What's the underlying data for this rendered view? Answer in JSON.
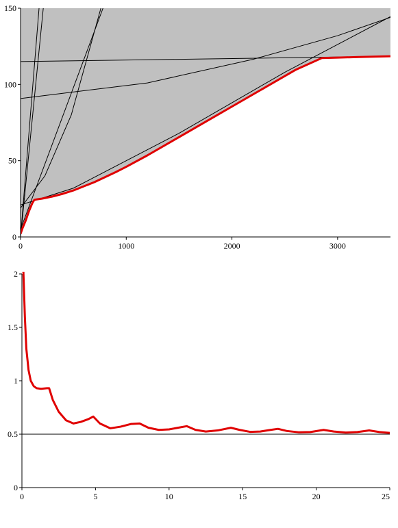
{
  "chart_data": [
    {
      "type": "area",
      "xlim": [
        0,
        3500
      ],
      "ylim": [
        0,
        150
      ],
      "xticks": [
        0,
        1000,
        2000,
        3000
      ],
      "yticks": [
        0,
        50,
        100,
        150
      ],
      "xtick_labels": [
        "0",
        "1000",
        "2000",
        "3000"
      ],
      "ytick_labels": [
        "0",
        "50",
        "100",
        "150"
      ],
      "grid": false,
      "fill_color": "#c0c0c0",
      "lower_envelope_color": "#e00000",
      "line_color": "#000000",
      "lower_envelope": {
        "x": [
          0,
          20,
          50,
          80,
          110,
          130,
          150,
          200,
          300,
          400,
          500,
          700,
          900,
          1000,
          1200,
          1500,
          1800,
          2000,
          2300,
          2600,
          2850,
          3000,
          3200,
          3500
        ],
        "y": [
          2,
          6,
          11,
          17,
          22,
          24.3,
          24.6,
          25.1,
          26.5,
          28.3,
          30.5,
          36,
          42.5,
          46,
          53.5,
          65.5,
          77.5,
          85.5,
          97.5,
          109.5,
          117.3,
          117.6,
          118,
          118.5
        ]
      },
      "curves": [
        {
          "x": [
            0,
            3500
          ],
          "y": [
            115,
            118.5
          ]
        },
        {
          "x": [
            0,
            1200,
            2200,
            3000,
            3500
          ],
          "y": [
            90.8,
            101,
            116.5,
            132,
            144
          ]
        },
        {
          "x": [
            0,
            500,
            1500,
            2500,
            3500
          ],
          "y": [
            21,
            32,
            68,
            108,
            144.5
          ]
        },
        {
          "x": [
            0,
            780
          ],
          "y": [
            5,
            150
          ]
        },
        {
          "x": [
            0,
            230,
            480,
            760
          ],
          "y": [
            19,
            40,
            80,
            150
          ]
        },
        {
          "x": [
            0,
            175
          ],
          "y": [
            0,
            150
          ]
        },
        {
          "x": [
            0,
            215
          ],
          "y": [
            0,
            150
          ]
        }
      ]
    },
    {
      "type": "line",
      "xlim": [
        0,
        25
      ],
      "ylim": [
        0,
        2
      ],
      "xticks": [
        0,
        5,
        10,
        15,
        20,
        25
      ],
      "yticks": [
        0,
        0.5,
        1,
        1.5,
        2
      ],
      "xtick_labels": [
        "0",
        "5",
        "10",
        "15",
        "20",
        "25"
      ],
      "ytick_labels": [
        "0",
        "0.5",
        "1",
        "1.5",
        "2"
      ],
      "grid": false,
      "reference_line_y": 0.5,
      "series": [
        {
          "color": "#e00000",
          "x": [
            0.1,
            0.2,
            0.3,
            0.45,
            0.6,
            0.8,
            1.0,
            1.3,
            1.7,
            1.85,
            2.1,
            2.5,
            3.0,
            3.5,
            4.0,
            4.5,
            4.85,
            5.3,
            6.0,
            6.7,
            7.4,
            8.0,
            8.6,
            9.3,
            10.0,
            10.6,
            11.2,
            11.8,
            12.5,
            13.3,
            14.2,
            14.8,
            15.5,
            16.2,
            16.9,
            17.4,
            18.0,
            18.8,
            19.6,
            20.5,
            21.2,
            22.0,
            22.8,
            23.6,
            24.3,
            25.0
          ],
          "y": [
            2.02,
            1.6,
            1.3,
            1.1,
            1.0,
            0.95,
            0.93,
            0.925,
            0.93,
            0.93,
            0.82,
            0.71,
            0.63,
            0.6,
            0.615,
            0.64,
            0.665,
            0.6,
            0.555,
            0.57,
            0.595,
            0.6,
            0.56,
            0.54,
            0.545,
            0.56,
            0.575,
            0.54,
            0.525,
            0.535,
            0.56,
            0.54,
            0.522,
            0.525,
            0.54,
            0.55,
            0.53,
            0.518,
            0.52,
            0.54,
            0.525,
            0.515,
            0.52,
            0.535,
            0.52,
            0.512
          ]
        }
      ]
    }
  ]
}
